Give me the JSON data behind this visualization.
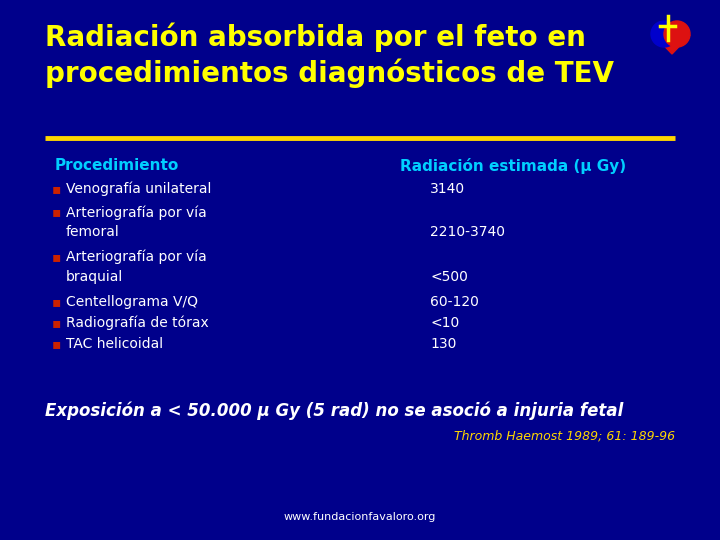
{
  "bg_color": "#00008B",
  "title_line1": "Radiación absorbida por el feto en",
  "title_line2": "procedimientos diagnósticos de TEV",
  "title_color": "#FFFF00",
  "title_fontsize": 20,
  "divider_color": "#FFD700",
  "col1_header": "Procedimiento",
  "col2_header": "Radiación estimada (μ Gy)",
  "header_color": "#00CFFF",
  "header_fontsize": 11,
  "bullet_color": "#CC2200",
  "text_color": "#FFFFFF",
  "body_fontsize": 10,
  "rows": [
    {
      "proc1": "Venografía unilateral",
      "proc2": "",
      "value": "3140",
      "twoline": false
    },
    {
      "proc1": "Arteriografía por vía",
      "proc2": "femoral",
      "value": "2210-3740",
      "twoline": true
    },
    {
      "proc1": "Arteriografía por vía",
      "proc2": "braquial",
      "value": "<500",
      "twoline": true
    },
    {
      "proc1": "Centellograma V/Q",
      "proc2": "",
      "value": "60-120",
      "twoline": false
    },
    {
      "proc1": "Radiografía de tórax",
      "proc2": "",
      "value": "<10",
      "twoline": false
    },
    {
      "proc1": "TAC helicoidal",
      "proc2": "",
      "value": "130",
      "twoline": false
    }
  ],
  "footer_main": "Exposición a < 50.000 μ Gy (5 rad) no se asoció a injuria fetal",
  "footer_main_color": "#FFFFFF",
  "footer_main_fontsize": 12,
  "footer_ref": "Thromb Haemost 1989; 61: 189-96",
  "footer_ref_color": "#FFD700",
  "footer_ref_fontsize": 9,
  "website": "www.fundacionfavaloro.org",
  "website_color": "#FFFFFF",
  "website_fontsize": 8,
  "logo_red": "#DD1111",
  "logo_blue": "#0000CC",
  "logo_cross": "#FFFF00"
}
